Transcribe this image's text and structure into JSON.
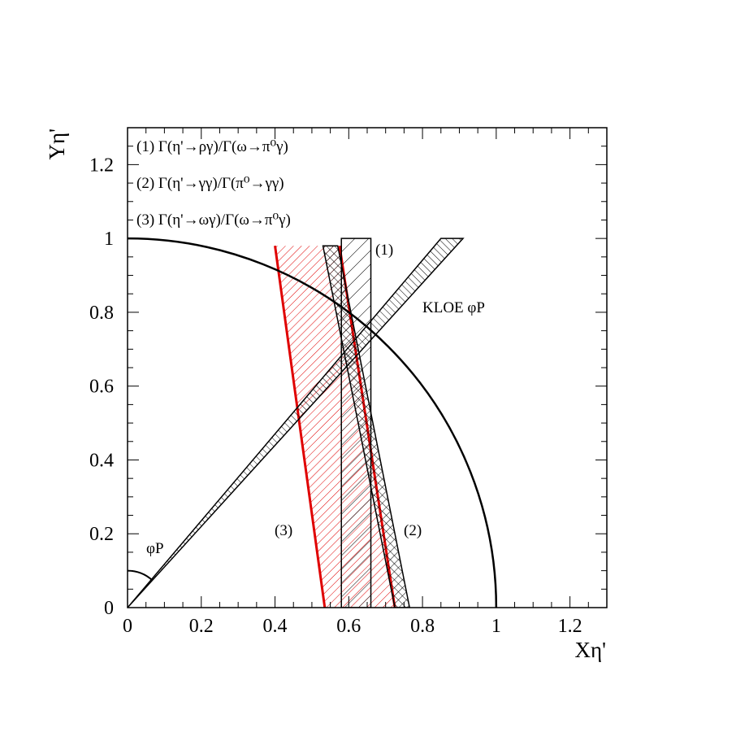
{
  "chart_data": {
    "type": "scatter",
    "title": "",
    "xlabel": "Xη'",
    "ylabel": "Yη'",
    "xlim": [
      0,
      1.3
    ],
    "ylim": [
      0,
      1.3
    ],
    "x_ticks": [
      0,
      0.2,
      0.4,
      0.6,
      0.8,
      1,
      1.2
    ],
    "y_ticks": [
      0,
      0.2,
      0.4,
      0.6,
      0.8,
      1,
      1.2
    ],
    "x_tick_labels": [
      "0",
      "0.2",
      "0.4",
      "0.6",
      "0.8",
      "1",
      "1.2"
    ],
    "y_tick_labels": [
      "0",
      "0.2",
      "0.4",
      "0.6",
      "0.8",
      "1",
      "1.2"
    ],
    "grid": false,
    "legend_position": "top-left",
    "legend": [
      "(1) Γ(η'→ργ)/Γ(ω→π⁰γ)",
      "(2) Γ(η'→γγ)/Γ(π⁰→γγ)",
      "(3) Γ(η'→ωγ)/Γ(ω→π⁰γ)"
    ],
    "unit_circle": {
      "radius": 1
    },
    "bands": [
      {
        "label": "(1)",
        "hatch": "single",
        "color": "#000000",
        "polygon": [
          [
            0.58,
            0
          ],
          [
            0.66,
            0
          ],
          [
            0.66,
            1
          ],
          [
            0.58,
            1
          ]
        ]
      },
      {
        "label": "(2)",
        "hatch": "cross",
        "color": "#000000",
        "polygon": [
          [
            0.53,
            0.98
          ],
          [
            0.57,
            0.98
          ],
          [
            0.765,
            0
          ],
          [
            0.725,
            0
          ]
        ]
      },
      {
        "label": "(3)",
        "hatch": "single",
        "color": "#e00000",
        "edge_color": "#e00000",
        "polygon": [
          [
            0.4,
            0.98
          ],
          [
            0.575,
            0.98
          ],
          [
            0.725,
            0
          ],
          [
            0.535,
            0
          ]
        ]
      }
    ],
    "kloe_band": {
      "label": "KLOE φP",
      "start": [
        0,
        0
      ],
      "end_lower": [
        0.91,
        1
      ],
      "end_upper": [
        0.85,
        1
      ]
    },
    "phi_angle": {
      "label": "φP",
      "radius": 0.1
    }
  }
}
